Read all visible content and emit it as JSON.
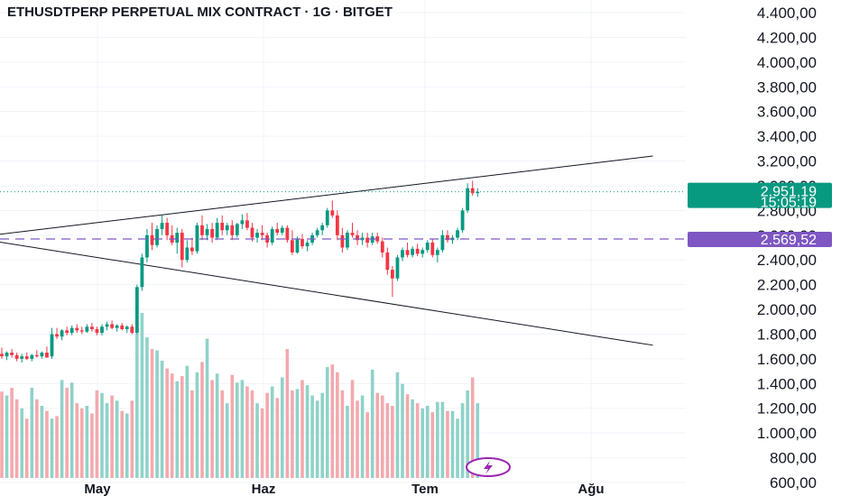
{
  "chart_data": {
    "type": "candlestick",
    "title": "ETHUSDTPERP PERPETUAL MIX CONTRACT · 1G · BITGET",
    "x_ticks": [
      "May",
      "Haz",
      "Tem",
      "Ağu"
    ],
    "y_ticks": [
      "600,00",
      "800,00",
      "1.000,00",
      "1.200,00",
      "1.400,00",
      "1.600,00",
      "1.800,00",
      "2.000,00",
      "2.200,00",
      "2.400,00",
      "2.600,00",
      "2.800,00",
      "3.000,00",
      "3.200,00",
      "3.400,00",
      "3.600,00",
      "3.800,00",
      "4.000,00",
      "4.200,00",
      "4.400,00"
    ],
    "ylim": [
      500,
      4450
    ],
    "current_price": {
      "value": 2951.19,
      "label": "2.951,19",
      "countdown": "15:05:19",
      "color": "#089981"
    },
    "marked_level": {
      "value": 2569.52,
      "label": "2.569,52",
      "color": "#7e57c2"
    },
    "trendlines": [
      {
        "from": {
          "bar": -6,
          "price": 2580
        },
        "to": {
          "bar": 130,
          "price": 3240
        }
      },
      {
        "from": {
          "bar": -6,
          "price": 2580
        },
        "to": {
          "bar": 130,
          "price": 1710
        }
      }
    ],
    "colors": {
      "up": "#089981",
      "down": "#f23645",
      "vol_up": "#8fd2c8",
      "vol_down": "#f3a9ae",
      "grid": "#f0f3fa"
    },
    "series": [
      {
        "name": "",
        "candles": [
          [
            1640,
            1690,
            1600,
            1620
          ],
          [
            1620,
            1660,
            1590,
            1650
          ],
          [
            1650,
            1680,
            1610,
            1630
          ],
          [
            1630,
            1650,
            1580,
            1600
          ],
          [
            1600,
            1640,
            1570,
            1620
          ],
          [
            1620,
            1650,
            1590,
            1600
          ],
          [
            1600,
            1640,
            1580,
            1630
          ],
          [
            1630,
            1670,
            1610,
            1620
          ],
          [
            1620,
            1660,
            1600,
            1650
          ],
          [
            1650,
            1700,
            1620,
            1610
          ],
          [
            1620,
            1850,
            1600,
            1800
          ],
          [
            1800,
            1850,
            1760,
            1780
          ],
          [
            1780,
            1840,
            1750,
            1830
          ],
          [
            1830,
            1860,
            1790,
            1810
          ],
          [
            1810,
            1870,
            1790,
            1850
          ],
          [
            1850,
            1880,
            1810,
            1830
          ],
          [
            1830,
            1860,
            1800,
            1820
          ],
          [
            1820,
            1880,
            1810,
            1860
          ],
          [
            1860,
            1890,
            1820,
            1840
          ],
          [
            1840,
            1860,
            1790,
            1810
          ],
          [
            1810,
            1880,
            1790,
            1860
          ],
          [
            1860,
            1900,
            1830,
            1880
          ],
          [
            1880,
            1910,
            1840,
            1850
          ],
          [
            1850,
            1880,
            1820,
            1870
          ],
          [
            1870,
            1890,
            1830,
            1840
          ],
          [
            1840,
            1870,
            1810,
            1860
          ],
          [
            1860,
            1880,
            1800,
            1810
          ],
          [
            1810,
            2200,
            1800,
            2180
          ],
          [
            2180,
            2450,
            2150,
            2420
          ],
          [
            2420,
            2650,
            2380,
            2600
          ],
          [
            2600,
            2700,
            2480,
            2520
          ],
          [
            2520,
            2680,
            2500,
            2650
          ],
          [
            2650,
            2760,
            2600,
            2700
          ],
          [
            2700,
            2740,
            2560,
            2600
          ],
          [
            2600,
            2680,
            2520,
            2540
          ],
          [
            2540,
            2660,
            2450,
            2620
          ],
          [
            2620,
            2650,
            2340,
            2400
          ],
          [
            2400,
            2560,
            2380,
            2500
          ],
          [
            2500,
            2580,
            2440,
            2470
          ],
          [
            2470,
            2700,
            2450,
            2680
          ],
          [
            2680,
            2760,
            2560,
            2600
          ],
          [
            2600,
            2690,
            2560,
            2650
          ],
          [
            2650,
            2700,
            2540,
            2580
          ],
          [
            2580,
            2740,
            2560,
            2700
          ],
          [
            2700,
            2760,
            2600,
            2640
          ],
          [
            2640,
            2700,
            2600,
            2680
          ],
          [
            2680,
            2720,
            2560,
            2600
          ],
          [
            2600,
            2700,
            2580,
            2690
          ],
          [
            2690,
            2770,
            2650,
            2720
          ],
          [
            2720,
            2780,
            2640,
            2660
          ],
          [
            2660,
            2700,
            2550,
            2580
          ],
          [
            2580,
            2650,
            2540,
            2620
          ],
          [
            2620,
            2680,
            2560,
            2600
          ],
          [
            2600,
            2620,
            2500,
            2540
          ],
          [
            2540,
            2670,
            2520,
            2650
          ],
          [
            2650,
            2700,
            2600,
            2620
          ],
          [
            2620,
            2680,
            2600,
            2660
          ],
          [
            2660,
            2680,
            2540,
            2560
          ],
          [
            2560,
            2640,
            2440,
            2460
          ],
          [
            2460,
            2590,
            2450,
            2570
          ],
          [
            2570,
            2610,
            2490,
            2510
          ],
          [
            2510,
            2560,
            2470,
            2540
          ],
          [
            2540,
            2620,
            2520,
            2600
          ],
          [
            2600,
            2660,
            2580,
            2640
          ],
          [
            2640,
            2700,
            2600,
            2680
          ],
          [
            2680,
            2820,
            2660,
            2800
          ],
          [
            2800,
            2880,
            2740,
            2760
          ],
          [
            2760,
            2800,
            2560,
            2600
          ],
          [
            2600,
            2660,
            2460,
            2500
          ],
          [
            2500,
            2640,
            2480,
            2620
          ],
          [
            2620,
            2700,
            2580,
            2600
          ],
          [
            2600,
            2640,
            2520,
            2560
          ],
          [
            2560,
            2620,
            2520,
            2580
          ],
          [
            2580,
            2620,
            2500,
            2540
          ],
          [
            2540,
            2620,
            2520,
            2590
          ],
          [
            2590,
            2620,
            2530,
            2550
          ],
          [
            2550,
            2580,
            2420,
            2460
          ],
          [
            2460,
            2500,
            2280,
            2320
          ],
          [
            2320,
            2350,
            2100,
            2250
          ],
          [
            2250,
            2440,
            2230,
            2420
          ],
          [
            2420,
            2500,
            2390,
            2480
          ],
          [
            2480,
            2540,
            2420,
            2440
          ],
          [
            2440,
            2510,
            2420,
            2490
          ],
          [
            2490,
            2530,
            2430,
            2450
          ],
          [
            2450,
            2500,
            2420,
            2480
          ],
          [
            2480,
            2560,
            2460,
            2540
          ],
          [
            2540,
            2570,
            2420,
            2440
          ],
          [
            2440,
            2500,
            2380,
            2480
          ],
          [
            2480,
            2640,
            2460,
            2600
          ],
          [
            2600,
            2640,
            2540,
            2560
          ],
          [
            2560,
            2600,
            2530,
            2580
          ],
          [
            2580,
            2660,
            2560,
            2640
          ],
          [
            2640,
            2820,
            2620,
            2800
          ],
          [
            2800,
            3020,
            2780,
            2980
          ],
          [
            2980,
            3040,
            2920,
            2940
          ],
          [
            2940,
            2980,
            2910,
            2950
          ]
        ]
      },
      {
        "name": "",
        "volumes": [
          850,
          820,
          880,
          790,
          720,
          640,
          880,
          790,
          740,
          700,
          640,
          660,
          940,
          880,
          920,
          760,
          720,
          740,
          680,
          860,
          840,
          760,
          820,
          780,
          700,
          680,
          780,
          1300,
          1460,
          1270,
          1180,
          1170,
          1090,
          1030,
          990,
          930,
          970,
          1050,
          860,
          1000,
          1080,
          1260,
          940,
          990,
          860,
          760,
          980,
          920,
          940,
          890,
          860,
          760,
          720,
          840,
          890,
          800,
          960,
          1180,
          860,
          870,
          940,
          900,
          820,
          780,
          840,
          1040,
          1060,
          1000,
          860,
          740,
          940,
          780,
          820,
          690,
          1020,
          840,
          820,
          760,
          740,
          1000,
          910,
          830,
          790,
          760,
          720,
          740,
          690,
          770,
          770,
          700,
          700,
          640,
          760,
          860,
          960,
          760
        ]
      }
    ]
  },
  "badges": {
    "icon": "lightning-icon"
  }
}
